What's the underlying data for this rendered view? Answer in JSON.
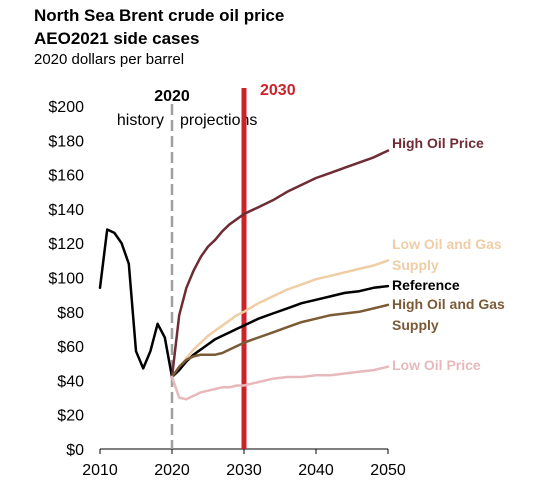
{
  "title_line1": "North Sea Brent crude oil price",
  "title_line2": "AEO2021 side cases",
  "subtitle": "2020 dollars per barrel",
  "annotations": {
    "divider_year_label": "2020",
    "history_label": "history",
    "projections_label": "projections",
    "highlight_year_label": "2030",
    "divider_year": 2020,
    "highlight_year": 2030
  },
  "colors": {
    "divider": "#a0a0a0",
    "highlight": "#cc2229"
  },
  "chart_data": {
    "type": "line",
    "title": "North Sea Brent crude oil price AEO2021 side cases",
    "ylabel": "2020 dollars per barrel",
    "xlim": [
      2010,
      2050
    ],
    "ylim": [
      0,
      200
    ],
    "xticks": [
      2010,
      2020,
      2030,
      2040,
      2050
    ],
    "yticks": [
      0,
      20,
      40,
      60,
      80,
      100,
      120,
      140,
      160,
      180,
      200
    ],
    "ytick_labels": [
      "$0",
      "$20",
      "$40",
      "$60",
      "$80",
      "$100",
      "$120",
      "$140",
      "$160",
      "$180",
      "$200"
    ],
    "grid": false,
    "legend": "direct labels at right end of each line",
    "series": [
      {
        "name": "History",
        "color": "#000000",
        "points": [
          [
            2010,
            94
          ],
          [
            2011,
            128
          ],
          [
            2012,
            126
          ],
          [
            2013,
            120
          ],
          [
            2014,
            108
          ],
          [
            2015,
            57
          ],
          [
            2016,
            47
          ],
          [
            2017,
            57
          ],
          [
            2018,
            73
          ],
          [
            2019,
            65
          ],
          [
            2020,
            42
          ]
        ]
      },
      {
        "name": "High Oil Price",
        "color": "#6e2c34",
        "label_lines": [
          "High Oil Price"
        ],
        "points": [
          [
            2020,
            42
          ],
          [
            2021,
            78
          ],
          [
            2022,
            94
          ],
          [
            2023,
            104
          ],
          [
            2024,
            112
          ],
          [
            2025,
            118
          ],
          [
            2026,
            122
          ],
          [
            2027,
            127
          ],
          [
            2028,
            131
          ],
          [
            2029,
            134
          ],
          [
            2030,
            137
          ],
          [
            2032,
            141
          ],
          [
            2034,
            145
          ],
          [
            2036,
            150
          ],
          [
            2038,
            154
          ],
          [
            2040,
            158
          ],
          [
            2042,
            161
          ],
          [
            2044,
            164
          ],
          [
            2046,
            167
          ],
          [
            2048,
            170
          ],
          [
            2050,
            174
          ]
        ]
      },
      {
        "name": "Low Oil and Gas Supply",
        "color": "#efcda5",
        "label_lines": [
          "Low Oil and Gas",
          "Supply"
        ],
        "points": [
          [
            2020,
            42
          ],
          [
            2021,
            47
          ],
          [
            2022,
            53
          ],
          [
            2023,
            58
          ],
          [
            2024,
            62
          ],
          [
            2025,
            66
          ],
          [
            2026,
            69
          ],
          [
            2027,
            72
          ],
          [
            2028,
            75
          ],
          [
            2029,
            78
          ],
          [
            2030,
            80
          ],
          [
            2032,
            85
          ],
          [
            2034,
            89
          ],
          [
            2036,
            93
          ],
          [
            2038,
            96
          ],
          [
            2040,
            99
          ],
          [
            2042,
            101
          ],
          [
            2044,
            103
          ],
          [
            2046,
            105
          ],
          [
            2048,
            107
          ],
          [
            2050,
            110
          ]
        ]
      },
      {
        "name": "Reference",
        "color": "#000000",
        "label_lines": [
          "Reference"
        ],
        "points": [
          [
            2020,
            42
          ],
          [
            2021,
            46
          ],
          [
            2022,
            51
          ],
          [
            2023,
            55
          ],
          [
            2024,
            58
          ],
          [
            2025,
            61
          ],
          [
            2026,
            64
          ],
          [
            2027,
            66
          ],
          [
            2028,
            68
          ],
          [
            2029,
            70
          ],
          [
            2030,
            72
          ],
          [
            2032,
            76
          ],
          [
            2034,
            79
          ],
          [
            2036,
            82
          ],
          [
            2038,
            85
          ],
          [
            2040,
            87
          ],
          [
            2042,
            89
          ],
          [
            2044,
            91
          ],
          [
            2046,
            92
          ],
          [
            2048,
            94
          ],
          [
            2050,
            95
          ]
        ]
      },
      {
        "name": "High Oil and Gas Supply",
        "color": "#7b5a36",
        "label_lines": [
          "High Oil and Gas",
          "Supply"
        ],
        "points": [
          [
            2020,
            42
          ],
          [
            2021,
            48
          ],
          [
            2022,
            52
          ],
          [
            2023,
            54
          ],
          [
            2024,
            55
          ],
          [
            2025,
            55
          ],
          [
            2026,
            55
          ],
          [
            2027,
            56
          ],
          [
            2028,
            58
          ],
          [
            2029,
            60
          ],
          [
            2030,
            62
          ],
          [
            2032,
            65
          ],
          [
            2034,
            68
          ],
          [
            2036,
            71
          ],
          [
            2038,
            74
          ],
          [
            2040,
            76
          ],
          [
            2042,
            78
          ],
          [
            2044,
            79
          ],
          [
            2046,
            80
          ],
          [
            2048,
            82
          ],
          [
            2050,
            84
          ]
        ]
      },
      {
        "name": "Low Oil Price",
        "color": "#e7b9bc",
        "label_lines": [
          "Low Oil Price"
        ],
        "points": [
          [
            2020,
            42
          ],
          [
            2021,
            30
          ],
          [
            2022,
            29
          ],
          [
            2023,
            31
          ],
          [
            2024,
            33
          ],
          [
            2025,
            34
          ],
          [
            2026,
            35
          ],
          [
            2027,
            36
          ],
          [
            2028,
            36
          ],
          [
            2029,
            37
          ],
          [
            2030,
            37
          ],
          [
            2032,
            39
          ],
          [
            2034,
            41
          ],
          [
            2036,
            42
          ],
          [
            2038,
            42
          ],
          [
            2040,
            43
          ],
          [
            2042,
            43
          ],
          [
            2044,
            44
          ],
          [
            2046,
            45
          ],
          [
            2048,
            46
          ],
          [
            2050,
            48
          ]
        ]
      }
    ]
  }
}
